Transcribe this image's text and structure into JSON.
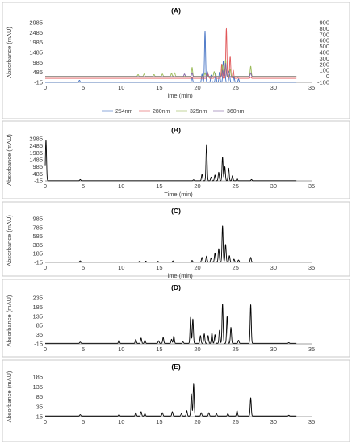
{
  "chart_data": [
    {
      "type": "line",
      "panel": "(A)",
      "xlabel": "Time (min)",
      "ylabel": "Absorbance (mAU)",
      "xlim": [
        0,
        35
      ],
      "xticks": [
        0,
        5,
        10,
        15,
        20,
        25,
        30,
        35
      ],
      "ylim": [
        -15,
        2985
      ],
      "yticks": [
        -15,
        485,
        985,
        1485,
        1985,
        2485,
        2985
      ],
      "y2lim": [
        -100,
        900
      ],
      "y2ticks": [
        -100,
        0,
        100,
        200,
        300,
        400,
        500,
        600,
        700,
        800,
        900
      ],
      "legend": "bottom",
      "series": [
        {
          "name": "254nm",
          "color": "#4472c4",
          "axis": "left",
          "baseline": -10,
          "peaks": [
            [
              4.5,
              90
            ],
            [
              19.3,
              250
            ],
            [
              20.6,
              400
            ],
            [
              21.0,
              2550
            ],
            [
              21.8,
              350
            ],
            [
              22.4,
              450
            ],
            [
              22.9,
              500
            ],
            [
              23.4,
              1050
            ],
            [
              23.6,
              600
            ],
            [
              24.2,
              420
            ],
            [
              24.8,
              250
            ],
            [
              25.4,
              150
            ]
          ]
        },
        {
          "name": "280nm",
          "color": "#e15759",
          "axis": "left",
          "baseline": 185,
          "peaks": [
            [
              19.3,
              200
            ],
            [
              21.4,
              400
            ],
            [
              22.3,
              300
            ],
            [
              23.2,
              900
            ],
            [
              23.8,
              2700
            ],
            [
              24.3,
              1300
            ],
            [
              24.7,
              600
            ],
            [
              25.3,
              200
            ],
            [
              27.0,
              250
            ]
          ]
        },
        {
          "name": "325nm",
          "color": "#9bbb59",
          "axis": "right",
          "baseline": 0,
          "peaks": [
            [
              12.2,
              30
            ],
            [
              13.0,
              40
            ],
            [
              14.3,
              30
            ],
            [
              15.4,
              40
            ],
            [
              16.6,
              50
            ],
            [
              17.0,
              60
            ],
            [
              19.3,
              150
            ],
            [
              21.0,
              60
            ],
            [
              22.2,
              80
            ],
            [
              23.3,
              200
            ],
            [
              23.7,
              280
            ],
            [
              24.3,
              120
            ],
            [
              27.0,
              170
            ]
          ]
        },
        {
          "name": "360nm",
          "color": "#8064a2",
          "axis": "right",
          "baseline": -5,
          "peaks": [
            [
              18.3,
              40
            ],
            [
              19.3,
              60
            ],
            [
              21.3,
              80
            ],
            [
              23.3,
              100
            ],
            [
              23.7,
              220
            ],
            [
              24.1,
              90
            ],
            [
              27.0,
              60
            ]
          ]
        }
      ]
    },
    {
      "type": "line",
      "panel": "(B)",
      "xlabel": "Time (min)",
      "ylabel": "Absorbance (mAU)",
      "xlim": [
        0,
        35
      ],
      "xticks": [
        0,
        5,
        10,
        15,
        20,
        25,
        30,
        35
      ],
      "ylim": [
        -15,
        2985
      ],
      "yticks": [
        -15,
        485,
        985,
        1485,
        1985,
        2485,
        2985
      ],
      "series": [
        {
          "color": "#000000",
          "baseline": -5,
          "peaks": [
            [
              0.1,
              2900
            ],
            [
              4.6,
              80
            ],
            [
              19.5,
              60
            ],
            [
              20.6,
              450
            ],
            [
              21.2,
              2600
            ],
            [
              21.8,
              250
            ],
            [
              22.3,
              400
            ],
            [
              22.8,
              600
            ],
            [
              23.3,
              1700
            ],
            [
              23.6,
              1000
            ],
            [
              24.1,
              900
            ],
            [
              24.6,
              350
            ],
            [
              25.2,
              150
            ],
            [
              27.1,
              80
            ]
          ]
        }
      ]
    },
    {
      "type": "line",
      "panel": "(C)",
      "xlabel": "Time (min)",
      "ylabel": "Absorbance (mAU)",
      "xlim": [
        0,
        35
      ],
      "xticks": [
        0,
        5,
        10,
        15,
        20,
        25,
        30,
        35
      ],
      "ylim": [
        -15,
        985
      ],
      "yticks": [
        -15,
        185,
        385,
        585,
        785,
        985
      ],
      "series": [
        {
          "color": "#000000",
          "baseline": -5,
          "peaks": [
            [
              4.6,
              20
            ],
            [
              12.4,
              10
            ],
            [
              13.2,
              15
            ],
            [
              14.8,
              10
            ],
            [
              16.8,
              20
            ],
            [
              19.3,
              30
            ],
            [
              20.6,
              100
            ],
            [
              21.2,
              130
            ],
            [
              21.8,
              90
            ],
            [
              22.3,
              200
            ],
            [
              22.8,
              300
            ],
            [
              23.3,
              830
            ],
            [
              23.7,
              400
            ],
            [
              24.2,
              140
            ],
            [
              24.8,
              60
            ],
            [
              25.4,
              40
            ],
            [
              27.0,
              100
            ]
          ]
        }
      ]
    },
    {
      "type": "line",
      "panel": "(D)",
      "xlabel": "",
      "ylabel": "Absorbance (mAU)",
      "xlim": [
        0,
        35
      ],
      "xticks": [
        0,
        5,
        10,
        15,
        20,
        25,
        30,
        35
      ],
      "ylim": [
        -15,
        235
      ],
      "yticks": [
        -15,
        35,
        85,
        135,
        185,
        235
      ],
      "series": [
        {
          "color": "#000000",
          "baseline": -12,
          "peaks": [
            [
              4.6,
              -5
            ],
            [
              9.7,
              5
            ],
            [
              11.9,
              10
            ],
            [
              12.6,
              17
            ],
            [
              13.1,
              5
            ],
            [
              14.9,
              2
            ],
            [
              15.5,
              20
            ],
            [
              16.6,
              10
            ],
            [
              16.9,
              28
            ],
            [
              18.1,
              -4
            ],
            [
              19.1,
              130
            ],
            [
              19.4,
              120
            ],
            [
              20.4,
              30
            ],
            [
              20.9,
              40
            ],
            [
              21.4,
              30
            ],
            [
              21.9,
              45
            ],
            [
              22.3,
              35
            ],
            [
              22.9,
              60
            ],
            [
              23.3,
              205
            ],
            [
              23.9,
              135
            ],
            [
              24.4,
              75
            ],
            [
              25.4,
              5
            ],
            [
              27.0,
              200
            ],
            [
              32.0,
              -8
            ]
          ]
        }
      ]
    },
    {
      "type": "line",
      "panel": "(E)",
      "xlabel": "",
      "ylabel": "Absorbance (mAU)",
      "xlim": [
        0,
        35
      ],
      "xticks": [
        0,
        5,
        10,
        15,
        20,
        25,
        30,
        35
      ],
      "ylim": [
        -15,
        185
      ],
      "yticks": [
        -15,
        35,
        85,
        135,
        185
      ],
      "series": [
        {
          "color": "#000000",
          "baseline": -12,
          "peaks": [
            [
              4.6,
              -5
            ],
            [
              9.7,
              -5
            ],
            [
              11.9,
              5
            ],
            [
              12.6,
              10
            ],
            [
              13.1,
              0
            ],
            [
              15.4,
              5
            ],
            [
              16.7,
              10
            ],
            [
              17.9,
              0
            ],
            [
              18.6,
              15
            ],
            [
              19.2,
              100
            ],
            [
              19.5,
              150
            ],
            [
              20.5,
              5
            ],
            [
              21.5,
              5
            ],
            [
              22.5,
              0
            ],
            [
              24.0,
              0
            ],
            [
              25.2,
              15
            ],
            [
              27.0,
              80
            ],
            [
              32.0,
              -8
            ]
          ]
        }
      ]
    }
  ]
}
